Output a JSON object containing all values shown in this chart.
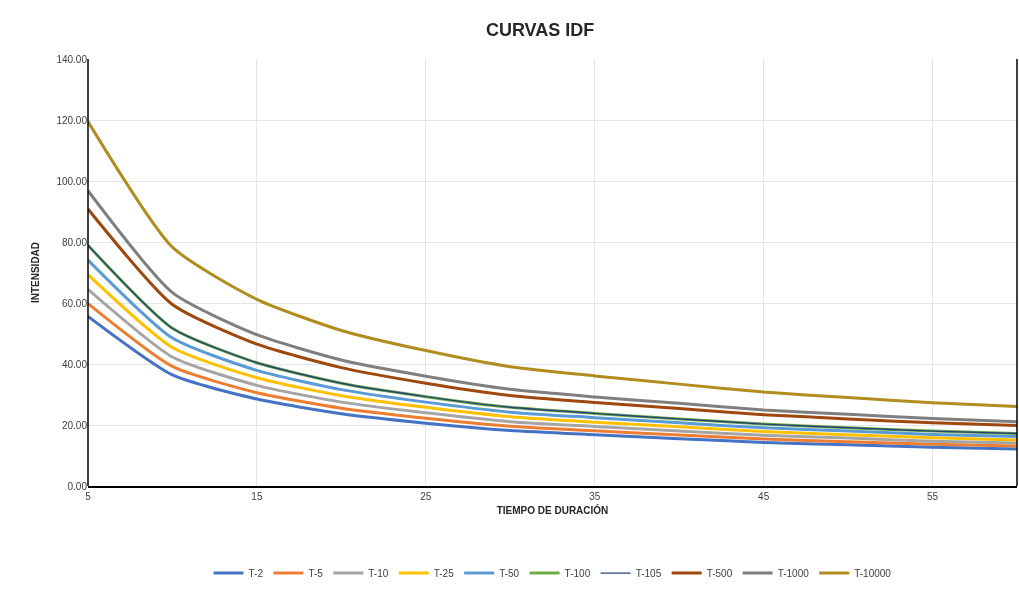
{
  "chart_data": {
    "type": "line",
    "title": "CURVAS IDF",
    "xlabel": "TIEMPO DE DURACIÓN",
    "ylabel": "INTENSIDAD",
    "x": [
      5,
      10,
      15,
      20,
      25,
      30,
      35,
      40,
      45,
      50,
      55,
      60
    ],
    "xlim": [
      5,
      60
    ],
    "xticks": [
      5,
      15,
      25,
      35,
      45,
      55
    ],
    "ylim": [
      0,
      140
    ],
    "yticks": [
      {
        "value": 0,
        "label": "0.00"
      },
      {
        "value": 20,
        "label": "20.00"
      },
      {
        "value": 40,
        "label": "40.00"
      },
      {
        "value": 60,
        "label": "60.00"
      },
      {
        "value": 80,
        "label": "80.00"
      },
      {
        "value": 100,
        "label": "100.00"
      },
      {
        "value": 120,
        "label": "120.00"
      },
      {
        "value": 140,
        "label": "140.00"
      }
    ],
    "grid": true,
    "legend": "bottom",
    "marker": "none",
    "line_style": "solid",
    "series": [
      {
        "name": "T-2",
        "color": "#4472c4",
        "values": [
          55.6,
          36.4,
          28.5,
          23.7,
          20.6,
          18.2,
          16.8,
          15.5,
          14.3,
          13.5,
          12.7,
          12.1
        ]
      },
      {
        "name": "T-5",
        "color": "#ed7d31",
        "values": [
          59.8,
          39.2,
          30.6,
          25.5,
          22.2,
          19.6,
          18.1,
          16.7,
          15.4,
          14.5,
          13.7,
          13.1
        ]
      },
      {
        "name": "T-10",
        "color": "#a5a5a5",
        "values": [
          64.5,
          42.3,
          33.0,
          27.5,
          24.0,
          21.1,
          19.5,
          18.0,
          16.6,
          15.7,
          14.7,
          14.1
        ]
      },
      {
        "name": "T-25",
        "color": "#ffc000",
        "values": [
          69.3,
          45.4,
          35.5,
          29.6,
          25.8,
          22.7,
          20.9,
          19.4,
          17.9,
          16.8,
          15.8,
          15.1
        ]
      },
      {
        "name": "T-50",
        "color": "#5b9bd5",
        "values": [
          74.1,
          48.5,
          37.9,
          31.6,
          27.5,
          24.2,
          22.4,
          20.7,
          19.1,
          18.0,
          16.9,
          16.2
        ]
      },
      {
        "name": "T-100",
        "color": "#70ad47",
        "values": [
          78.9,
          51.7,
          40.4,
          33.7,
          29.3,
          25.8,
          23.8,
          22.0,
          20.3,
          19.1,
          18.0,
          17.2
        ]
      },
      {
        "name": "T-105",
        "color": "#264478",
        "values": [
          78.9,
          51.7,
          40.4,
          33.7,
          29.3,
          25.8,
          23.8,
          22.0,
          20.3,
          19.1,
          18.0,
          17.2
        ]
      },
      {
        "name": "T-500",
        "color": "#9e480e",
        "values": [
          90.8,
          59.5,
          46.5,
          38.8,
          33.7,
          29.7,
          27.4,
          25.4,
          23.4,
          22.0,
          20.7,
          19.8
        ]
      },
      {
        "name": "T-1000",
        "color": "#7f7f7f",
        "values": [
          96.8,
          63.4,
          49.6,
          41.3,
          36.0,
          31.7,
          29.2,
          27.1,
          24.9,
          23.5,
          22.1,
          21.1
        ]
      },
      {
        "name": "T-10000",
        "color": "#b08d1e",
        "values": [
          119.5,
          78.3,
          61.2,
          51.0,
          44.4,
          39.1,
          36.1,
          33.4,
          30.8,
          29.0,
          27.3,
          26.1
        ]
      }
    ]
  }
}
